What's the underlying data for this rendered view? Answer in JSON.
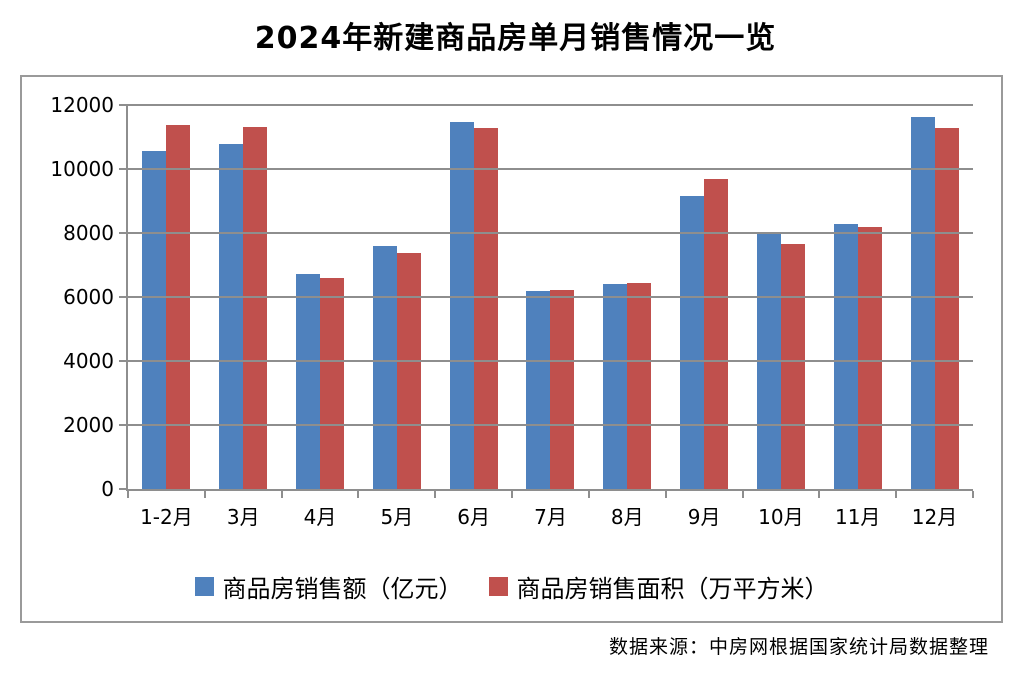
{
  "title": "2024年新建商品房单月销售情况一览",
  "source": "数据来源：中房网根据国家统计局数据整理",
  "colors": {
    "series_amount": "#4F81BD",
    "series_area": "#C0504D",
    "gridline": "#8e8e8e",
    "frame_border": "#9a9a9a"
  },
  "chart_data": {
    "type": "bar",
    "title": "2024年新建商品房单月销售情况一览",
    "categories": [
      "1-2月",
      "3月",
      "4月",
      "5月",
      "6月",
      "7月",
      "8月",
      "9月",
      "10月",
      "11月",
      "12月"
    ],
    "series": [
      {
        "name": "商品房销售额（亿元）",
        "color": "#4F81BD",
        "values": [
          10566,
          10789,
          6712,
          7598,
          11468,
          6197,
          6393,
          9157,
          7975,
          8270,
          11625
        ]
      },
      {
        "name": "商品房销售面积（万平方米）",
        "color": "#C0504D",
        "values": [
          11369,
          11299,
          6584,
          7390,
          11274,
          6233,
          6453,
          9682,
          7646,
          8188,
          11267
        ]
      }
    ],
    "xlabel": "",
    "ylabel": "",
    "ylim": [
      0,
      12000
    ],
    "yticks": [
      0,
      2000,
      4000,
      6000,
      8000,
      10000,
      12000
    ],
    "grid": true,
    "legend_position": "bottom"
  }
}
